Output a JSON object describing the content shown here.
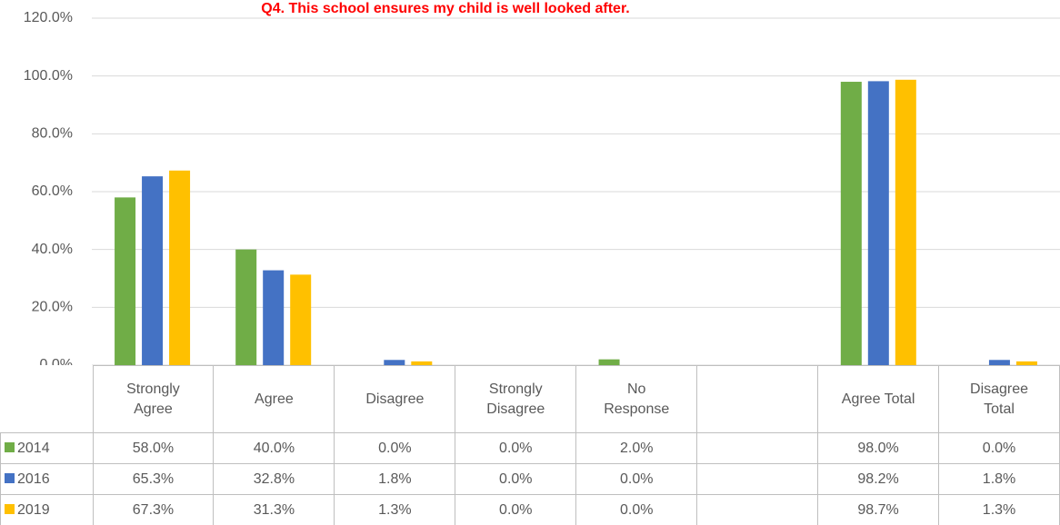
{
  "chart_data": {
    "type": "bar",
    "title": "Q4. This school ensures my child is well looked after.",
    "categories": [
      "Strongly Agree",
      "Agree",
      "Disagree",
      "Strongly Disagree",
      "No Response",
      null,
      "Agree Total",
      "Disagree Total"
    ],
    "series": [
      {
        "name": "2014",
        "color": "#70ad47",
        "values": [
          58.0,
          40.0,
          0.0,
          0.0,
          2.0,
          null,
          98.0,
          0.0
        ],
        "value_labels": [
          "58.0%",
          "40.0%",
          "0.0%",
          "0.0%",
          "2.0%",
          null,
          "98.0%",
          "0.0%"
        ]
      },
      {
        "name": "2016",
        "color": "#4472c4",
        "values": [
          65.3,
          32.8,
          1.8,
          0.0,
          0.0,
          null,
          98.2,
          1.8
        ],
        "value_labels": [
          "65.3%",
          "32.8%",
          "1.8%",
          "0.0%",
          "0.0%",
          null,
          "98.2%",
          "1.8%"
        ]
      },
      {
        "name": "2019",
        "color": "#ffc000",
        "values": [
          67.3,
          31.3,
          1.3,
          0.0,
          0.0,
          null,
          98.7,
          1.3
        ],
        "value_labels": [
          "67.3%",
          "31.3%",
          "1.3%",
          "0.0%",
          "0.0%",
          null,
          "98.7%",
          "1.3%"
        ]
      }
    ],
    "ylim": [
      0,
      120
    ],
    "yticks": [
      {
        "value": 0,
        "label": "0.0%"
      },
      {
        "value": 20,
        "label": "20.0%"
      },
      {
        "value": 40,
        "label": "40.0%"
      },
      {
        "value": 60,
        "label": "60.0%"
      },
      {
        "value": 80,
        "label": "80.0%"
      },
      {
        "value": 100,
        "label": "100.0%"
      },
      {
        "value": 120,
        "label": "120.0%"
      }
    ],
    "grid": true
  }
}
